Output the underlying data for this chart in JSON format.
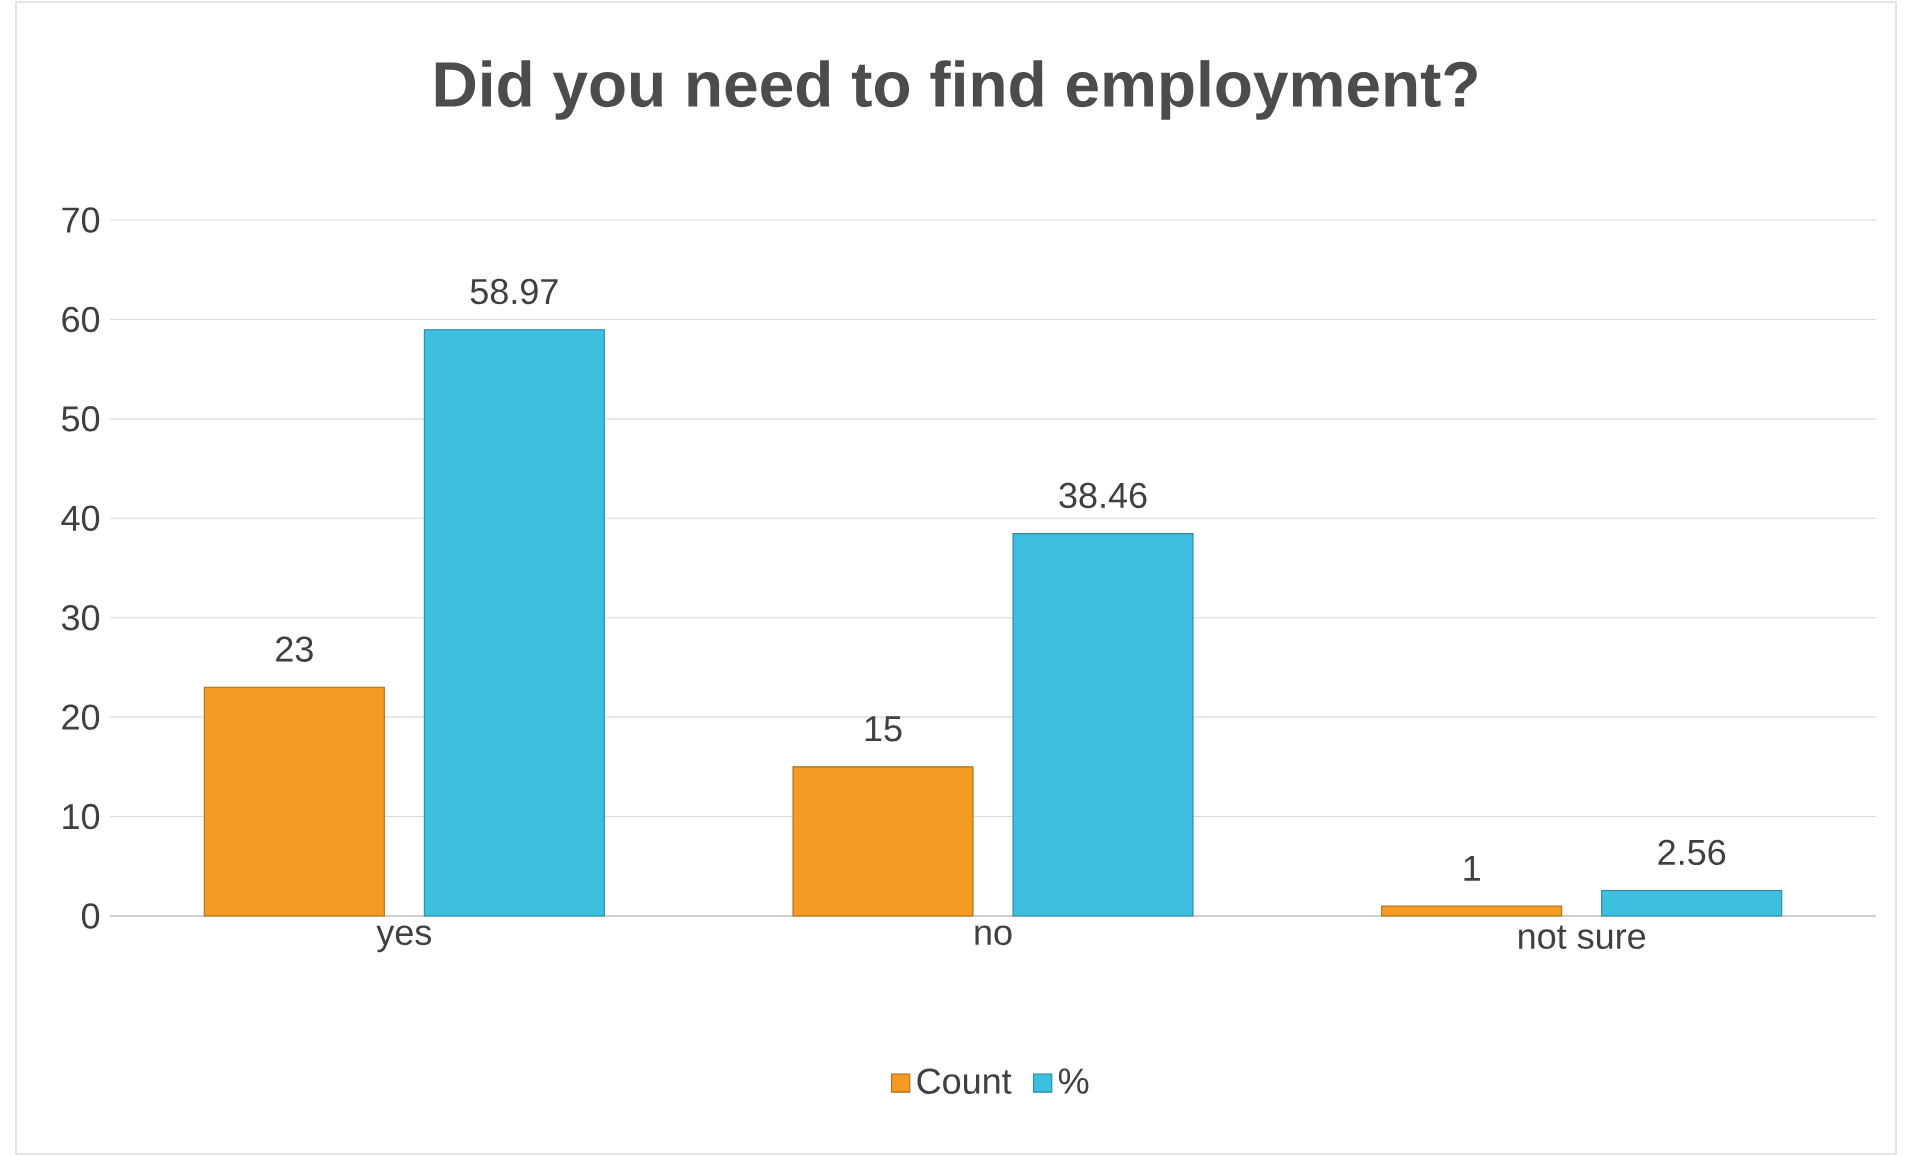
{
  "chart_data": {
    "type": "bar",
    "title": "Did you need to find employment?",
    "categories": [
      "yes",
      "no",
      "not sure"
    ],
    "series": [
      {
        "name": "Count",
        "color": "#f59a23",
        "values": [
          23,
          15,
          1
        ]
      },
      {
        "name": "%",
        "color": "#3dbfe0",
        "values": [
          58.97,
          38.46,
          2.56
        ]
      }
    ],
    "ylim": [
      0,
      70
    ],
    "yticks": [
      0,
      10,
      20,
      30,
      40,
      50,
      60,
      70
    ],
    "grid": "y",
    "legend": "bottom",
    "data_labels": true
  }
}
